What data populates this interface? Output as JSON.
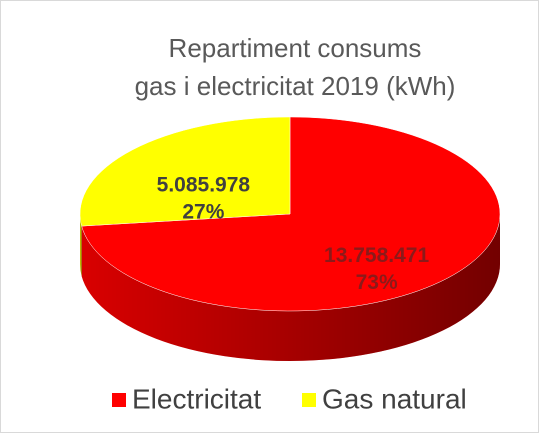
{
  "chart_data": {
    "type": "pie",
    "title": [
      "Repartiment  consums",
      "gas i electricitat 2019 (kWh)"
    ],
    "categories": [
      "Electricitat",
      "Gas natural"
    ],
    "values": [
      13758471,
      5085978
    ],
    "value_labels": [
      "13.758.471",
      "5.085.978"
    ],
    "percents": [
      73,
      27
    ],
    "percent_labels": [
      "73%",
      "27%"
    ],
    "colors": [
      "#ff0000",
      "#ffff00"
    ],
    "label_colors": [
      "#8b1a1a",
      "#404040"
    ],
    "legend": "bottom"
  }
}
